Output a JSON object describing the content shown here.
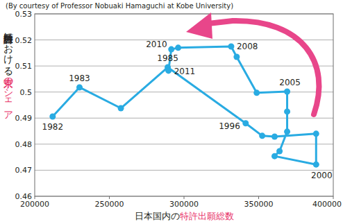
{
  "chart_data": {
    "type": "line",
    "subtitle": "(By courtesy of Professor Nobuaki Hamaguchi at Kobe University)",
    "xlabel": [
      {
        "text": "日本国内の",
        "color": "#231f20"
      },
      {
        "text": "特許出願総数",
        "color": "#e8336a"
      }
    ],
    "ylabel": [
      {
        "text": "特許出願数における",
        "color": "#231f20"
      },
      {
        "text": "東京のシェア",
        "color": "#e8336a"
      }
    ],
    "x": [
      212000,
      230000,
      257700,
      289100,
      341300,
      352400,
      360700,
      388500,
      388500,
      360700,
      364000,
      369100,
      369100,
      369100,
      348700,
      335300,
      331600,
      296100,
      291500,
      289600
    ],
    "values": [
      0.4906,
      0.5018,
      0.4938,
      0.5095,
      0.488,
      0.4832,
      0.4829,
      0.484,
      0.4722,
      0.4754,
      0.4773,
      0.4848,
      0.4925,
      0.5002,
      0.4997,
      0.5135,
      0.5175,
      0.517,
      0.5164,
      0.5082
    ],
    "point_labels": [
      "1982",
      "1983",
      null,
      "1985",
      "1996",
      null,
      null,
      null,
      "2000",
      null,
      null,
      null,
      null,
      "2005",
      null,
      null,
      "2008",
      null,
      "2010",
      "2011"
    ],
    "color": "#29abe2",
    "marker": "circle",
    "xlim": [
      200000,
      400000
    ],
    "xticks": [
      200000,
      250000,
      300000,
      350000,
      400000
    ],
    "ylim": [
      0.46,
      0.53
    ],
    "yticks": [
      0.46,
      0.47,
      0.48,
      0.49,
      0.5,
      0.51,
      0.52,
      0.53
    ],
    "grid": true
  }
}
